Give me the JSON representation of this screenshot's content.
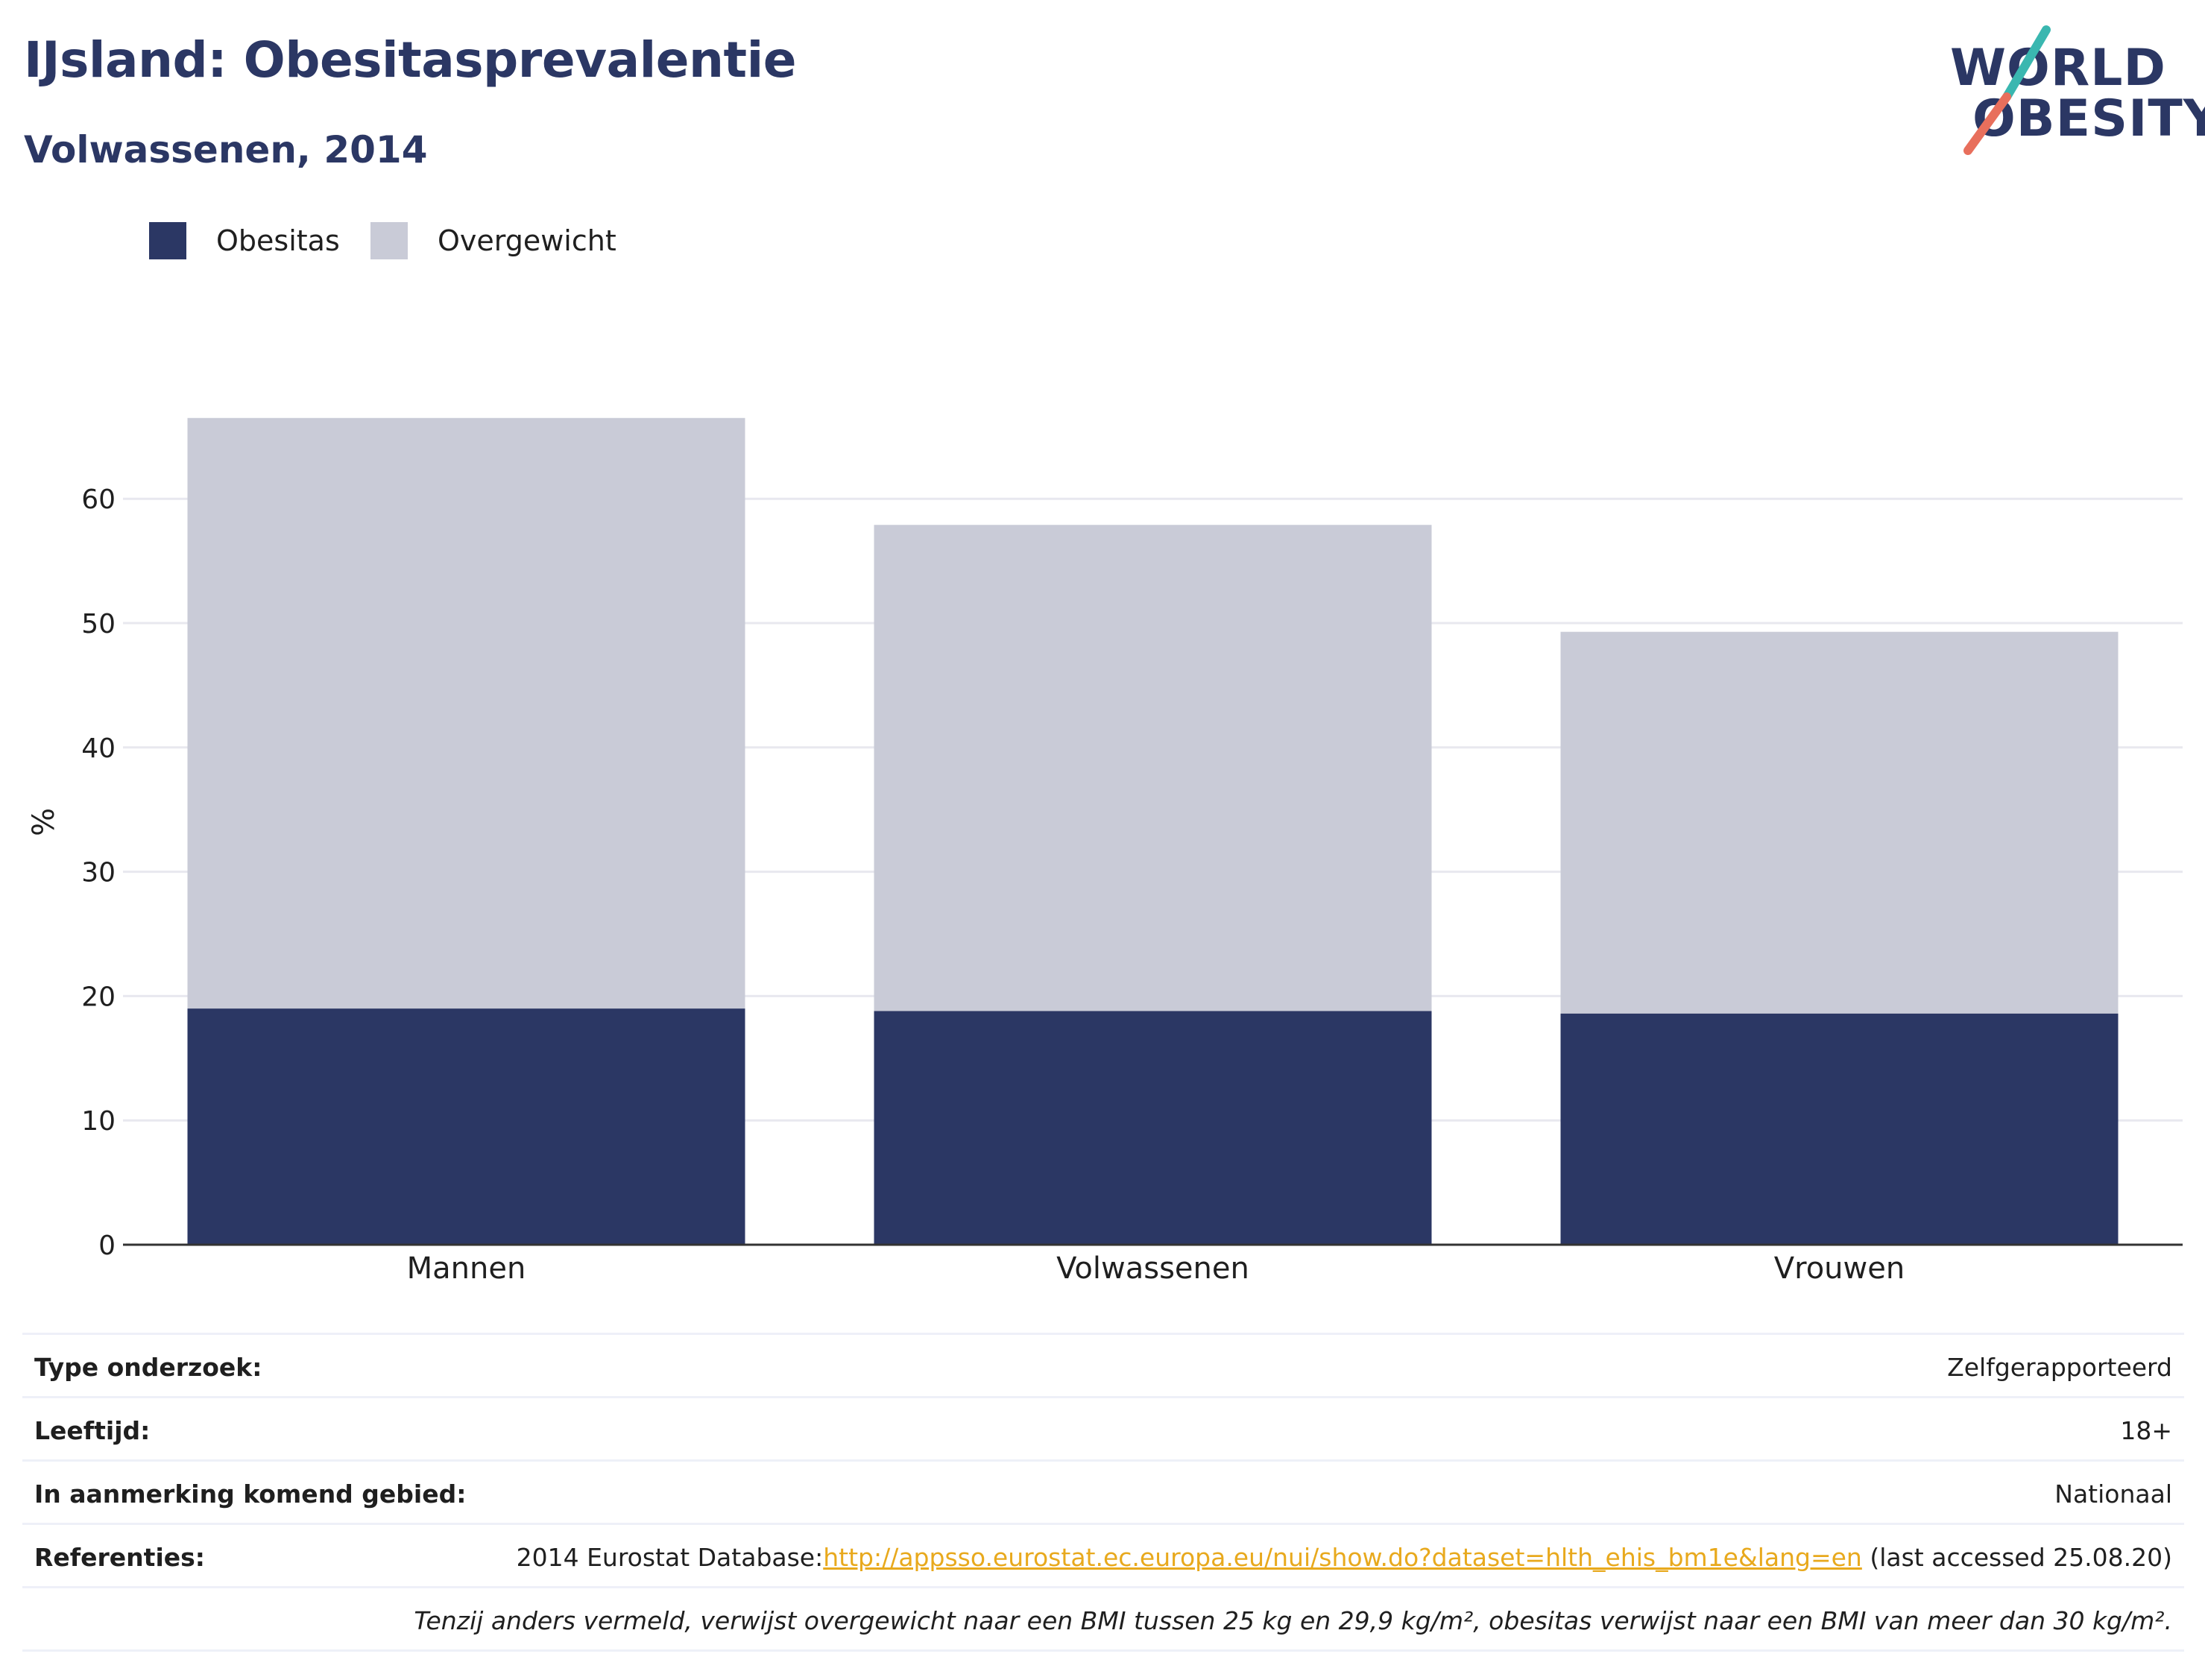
{
  "header": {
    "title": "IJsland: Obesitasprevalentie",
    "subtitle": "Volwassenen, 2014"
  },
  "logo": {
    "line1": "WORLD",
    "line2": "OBESITY",
    "slash_colors": [
      "#3ab7b0",
      "#e86f5c"
    ]
  },
  "colors": {
    "obesitas": "#2b3764",
    "overgewicht": "#c9cbd7",
    "gridline": "#e8e8ef",
    "axis": "#333333"
  },
  "legend": [
    {
      "label": "Obesitas",
      "color": "#2b3764"
    },
    {
      "label": "Overgewicht",
      "color": "#c9cbd7"
    }
  ],
  "chart_data": {
    "type": "bar",
    "stacked": true,
    "categories": [
      "Mannen",
      "Volwassenen",
      "Vrouwen"
    ],
    "series": [
      {
        "name": "Obesitas",
        "values": [
          19.0,
          18.8,
          18.6
        ],
        "color": "#2b3764"
      },
      {
        "name": "Overgewicht",
        "values": [
          47.5,
          39.1,
          30.7
        ],
        "color": "#c9cbd7"
      }
    ],
    "ylabel": "%",
    "ylim": [
      0,
      75
    ],
    "yticks": [
      0,
      10,
      20,
      30,
      40,
      50,
      60
    ],
    "grid": true,
    "legend_position": "top-left"
  },
  "info": [
    {
      "label": "Type onderzoek:",
      "value": "Zelfgerapporteerd"
    },
    {
      "label": "Leeftijd:",
      "value": "18+"
    },
    {
      "label": "In aanmerking komend gebied:",
      "value": "Nationaal"
    },
    {
      "label": "Referenties:",
      "prefix": "2014 Eurostat Database:",
      "link": "http://appsso.eurostat.ec.europa.eu/nui/show.do?dataset=hlth_ehis_bm1e&lang=en",
      "suffix": " (last accessed 25.08.20)"
    }
  ],
  "note": "Tenzij anders vermeld, verwijst overgewicht naar een BMI tussen 25 kg en 29,9 kg/m², obesitas verwijst naar een BMI van meer dan 30 kg/m²."
}
